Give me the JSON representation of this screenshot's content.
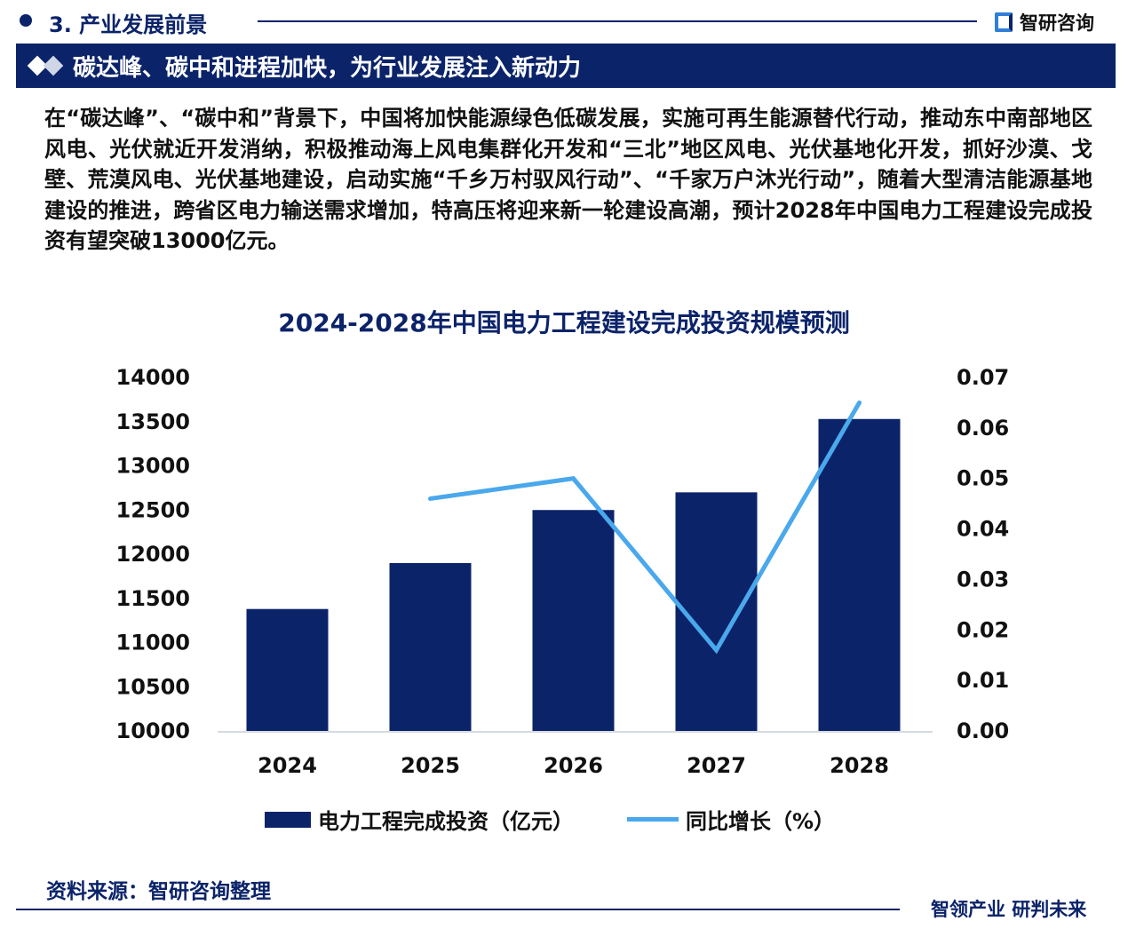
{
  "header": {
    "section": "3. 产业发展前景",
    "brand": "智研咨询"
  },
  "banner": {
    "title": "碳达峰、碳中和进程加快，为行业发展注入新动力"
  },
  "paragraph": "在“碳达峰”、“碳中和”背景下，中国将加快能源绿色低碳发展，实施可再生能源替代行动，推动东中南部地区风电、光伏就近开发消纳，积极推动海上风电集群化开发和“三北”地区风电、光伏基地化开发，抓好沙漠、戈壁、荒漠风电、光伏基地建设，启动实施“千乡万村驭风行动”、“千家万户沐光行动”，随着大型清洁能源基地建设的推进，跨省区电力输送需求增加，特高压将迎来新一轮建设高潮，预计2028年中国电力工程建设完成投资有望突破13000亿元。",
  "chart_data": {
    "type": "bar",
    "title": "2024-2028年中国电力工程建设完成投资规模预测",
    "categories": [
      "2024",
      "2025",
      "2026",
      "2027",
      "2028"
    ],
    "series": [
      {
        "name": "电力工程完成投资（亿元）",
        "type": "bar",
        "axis": "left",
        "values": [
          11380,
          11900,
          12500,
          12700,
          13530
        ],
        "color": "#0b2369"
      },
      {
        "name": "同比增长（%）",
        "type": "line",
        "axis": "right",
        "values": [
          null,
          0.046,
          0.05,
          0.016,
          0.065
        ],
        "color": "#4aa8ec"
      }
    ],
    "ylim_left": [
      10000,
      14000
    ],
    "yticks_left": [
      "10000",
      "10500",
      "11000",
      "11500",
      "12000",
      "12500",
      "13000",
      "13500",
      "14000"
    ],
    "ylim_right": [
      0,
      0.07
    ],
    "yticks_right": [
      "0.00",
      "0.01",
      "0.02",
      "0.03",
      "0.04",
      "0.05",
      "0.06",
      "0.07"
    ],
    "legend": "bottom",
    "grid": false
  },
  "footer": {
    "source": "资料来源：智研咨询整理",
    "slogan": "智领产业 研判未来"
  }
}
